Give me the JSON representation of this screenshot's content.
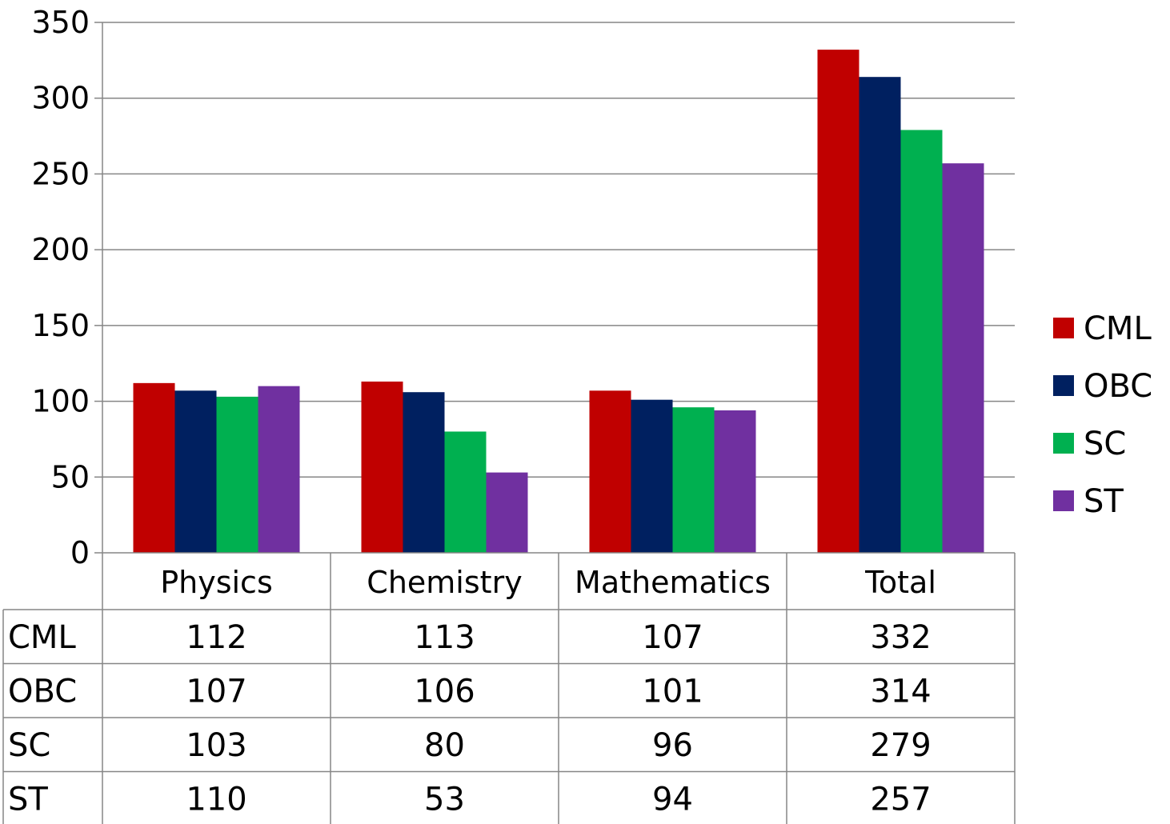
{
  "chart_data": {
    "type": "bar",
    "title": "",
    "xlabel": "",
    "ylabel": "",
    "ylim": [
      0,
      350
    ],
    "yticks": [
      0,
      50,
      100,
      150,
      200,
      250,
      300,
      350
    ],
    "grid": true,
    "legend_position": "right",
    "categories": [
      "Physics",
      "Chemistry",
      "Mathematics",
      "Total"
    ],
    "series": [
      {
        "name": "CML",
        "color": "#C00000",
        "values": [
          112,
          113,
          107,
          332
        ]
      },
      {
        "name": "OBC",
        "color": "#002060",
        "values": [
          107,
          106,
          101,
          314
        ]
      },
      {
        "name": "SC",
        "color": "#00B050",
        "values": [
          103,
          80,
          96,
          279
        ]
      },
      {
        "name": "ST",
        "color": "#7030A0",
        "values": [
          110,
          53,
          94,
          257
        ]
      }
    ],
    "data_table": true
  }
}
